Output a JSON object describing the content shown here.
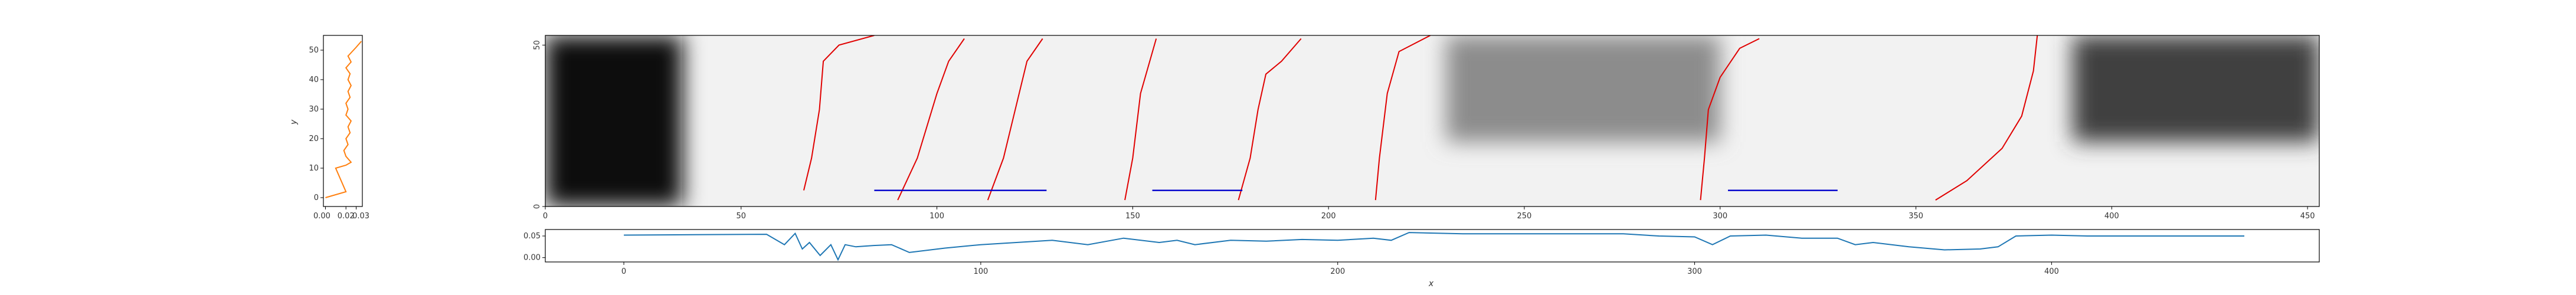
{
  "colors": {
    "path": "#e00000",
    "segment": "#0000cc",
    "profile_y": "#ff7f0e",
    "profile_x": "#1f77b4"
  },
  "chart_data": [
    {
      "type": "heatmap",
      "title": "",
      "xlabel": "",
      "ylabel": "",
      "xlim": [
        0,
        453
      ],
      "ylim": [
        0,
        53
      ],
      "xticks": [
        "0",
        "50",
        "100",
        "150",
        "200",
        "250",
        "300",
        "350",
        "400",
        "450"
      ],
      "yticks": [
        "0",
        "50"
      ],
      "colormap": "gray_r",
      "dark_regions": [
        {
          "x": [
            0,
            35
          ],
          "y": [
            0,
            53
          ],
          "intensity": 0.95
        },
        {
          "x": [
            390,
            453
          ],
          "y": [
            20,
            53
          ],
          "intensity": 0.75
        },
        {
          "x": [
            230,
            300
          ],
          "y": [
            20,
            53
          ],
          "intensity": 0.45
        }
      ],
      "paths": [
        {
          "points": [
            [
              66,
              5
            ],
            [
              68,
              15
            ],
            [
              70,
              30
            ],
            [
              71,
              45
            ],
            [
              75,
              50
            ],
            [
              84,
              53
            ]
          ]
        },
        {
          "points": [
            [
              90,
              2
            ],
            [
              95,
              15
            ],
            [
              100,
              35
            ],
            [
              103,
              45
            ],
            [
              107,
              52
            ]
          ]
        },
        {
          "points": [
            [
              113,
              2
            ],
            [
              117,
              15
            ],
            [
              120,
              30
            ],
            [
              123,
              45
            ],
            [
              127,
              52
            ]
          ]
        },
        {
          "points": [
            [
              148,
              2
            ],
            [
              150,
              15
            ],
            [
              152,
              35
            ],
            [
              156,
              52
            ]
          ]
        },
        {
          "points": [
            [
              177,
              2
            ],
            [
              180,
              15
            ],
            [
              182,
              30
            ],
            [
              184,
              41
            ],
            [
              188,
              45
            ],
            [
              193,
              52
            ]
          ]
        },
        {
          "points": [
            [
              212,
              2
            ],
            [
              213,
              15
            ],
            [
              215,
              35
            ],
            [
              218,
              48
            ],
            [
              226,
              53
            ]
          ]
        },
        {
          "points": [
            [
              295,
              2
            ],
            [
              296,
              15
            ],
            [
              297,
              30
            ],
            [
              300,
              40
            ],
            [
              305,
              49
            ],
            [
              310,
              52
            ]
          ]
        },
        {
          "points": [
            [
              355,
              2
            ],
            [
              363,
              8
            ],
            [
              372,
              18
            ],
            [
              377,
              28
            ],
            [
              380,
              42
            ],
            [
              381,
              53
            ]
          ]
        }
      ],
      "segments": [
        {
          "x": [
            84,
            128
          ],
          "y": 5
        },
        {
          "x": [
            155,
            178
          ],
          "y": 5
        },
        {
          "x": [
            302,
            330
          ],
          "y": 5
        }
      ]
    },
    {
      "type": "line",
      "title": "",
      "xlabel": "x",
      "ylabel": "",
      "xlim": [
        -22,
        475
      ],
      "ylim": [
        -0.01,
        0.065
      ],
      "xticks": [
        "0",
        "100",
        "200",
        "300",
        "400"
      ],
      "yticks": [
        "0.00",
        "0.05"
      ],
      "series": [
        {
          "x": [
            0,
            20,
            40,
            45,
            48,
            50,
            52,
            55,
            58,
            60,
            62,
            65,
            70,
            75,
            80,
            90,
            100,
            110,
            120,
            130,
            140,
            150,
            155,
            160,
            170,
            180,
            190,
            200,
            210,
            215,
            220,
            235,
            250,
            260,
            270,
            280,
            290,
            300,
            305,
            310,
            320,
            330,
            340,
            345,
            350,
            360,
            370,
            380,
            385,
            390,
            400,
            410,
            420,
            430,
            440,
            450,
            454
          ],
          "y": [
            0.052,
            0.053,
            0.054,
            0.03,
            0.056,
            0.02,
            0.035,
            0.005,
            0.03,
            -0.005,
            0.03,
            0.025,
            0.028,
            0.03,
            0.012,
            0.022,
            0.03,
            0.035,
            0.04,
            0.03,
            0.045,
            0.035,
            0.04,
            0.03,
            0.04,
            0.038,
            0.042,
            0.04,
            0.045,
            0.04,
            0.058,
            0.055,
            0.055,
            0.055,
            0.055,
            0.055,
            0.05,
            0.048,
            0.03,
            0.05,
            0.052,
            0.045,
            0.045,
            0.03,
            0.035,
            0.025,
            0.018,
            0.02,
            0.025,
            0.05,
            0.052,
            0.05,
            0.05,
            0.05,
            0.05,
            0.05,
            0.05
          ]
        }
      ]
    },
    {
      "type": "line",
      "title": "",
      "xlabel": "",
      "ylabel": "y",
      "xlim": [
        -0.002,
        0.036
      ],
      "ylim": [
        -3,
        55
      ],
      "xticks": [
        "0.00",
        "0.02",
        "0.03"
      ],
      "yticks": [
        "0",
        "10",
        "20",
        "30",
        "40",
        "50"
      ],
      "orientation": "vertical",
      "series": [
        {
          "x": [
            0.0,
            0.02,
            0.01,
            0.02,
            0.025,
            0.02,
            0.018,
            0.022,
            0.02,
            0.024,
            0.022,
            0.025,
            0.02,
            0.022,
            0.02,
            0.024,
            0.022,
            0.025,
            0.022,
            0.024,
            0.02,
            0.025,
            0.022,
            0.03,
            0.035
          ],
          "y": [
            0,
            2,
            10,
            11,
            12,
            14,
            16,
            18,
            20,
            22,
            24,
            26,
            28,
            30,
            32,
            34,
            36,
            38,
            40,
            42,
            44,
            46,
            48,
            51,
            53
          ]
        }
      ]
    }
  ]
}
